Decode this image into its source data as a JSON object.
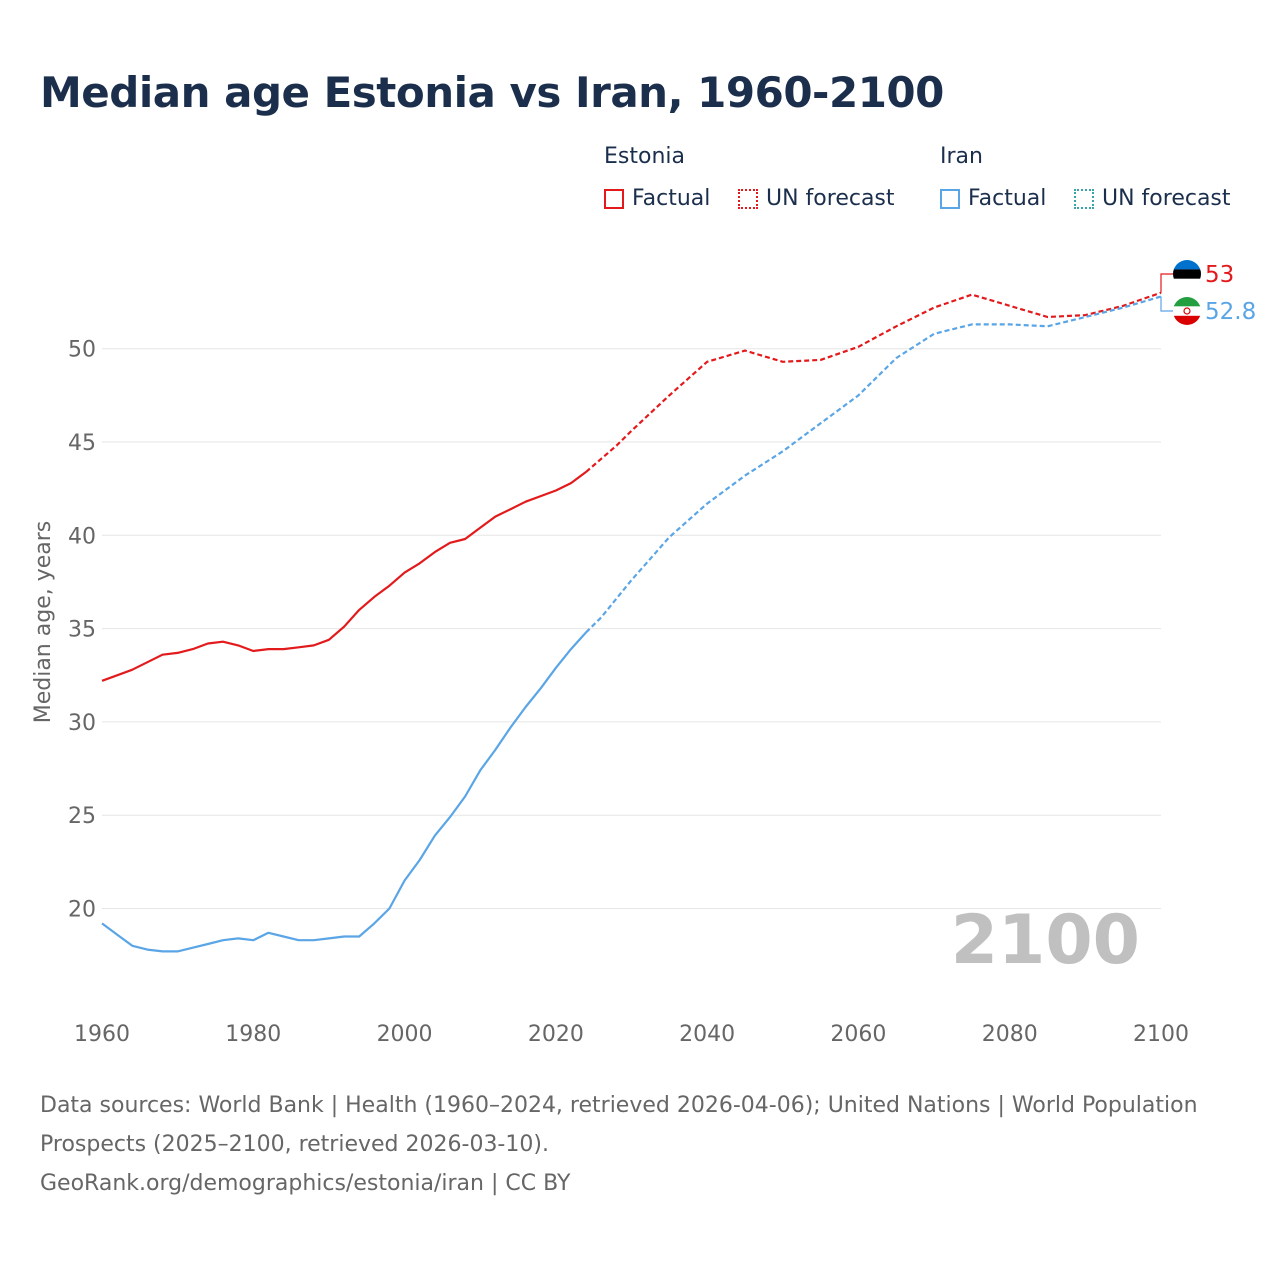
{
  "title": "Median age Estonia vs Iran, 1960-2100",
  "legend": {
    "groups": [
      {
        "name": "Estonia",
        "factual": "Factual",
        "forecast": "UN forecast",
        "color": "#e31a1c"
      },
      {
        "name": "Iran",
        "factual": "Factual",
        "forecast": "UN forecast",
        "color": "#5aa5e6"
      }
    ]
  },
  "year_watermark": "2100",
  "end_labels": {
    "estonia": "53",
    "iran": "52.8"
  },
  "footer": {
    "sources": "Data sources: World Bank | Health (1960–2024, retrieved 2026-04-06); United Nations | World Population Prospects (2025–2100, retrieved 2026-03-10).",
    "credit": "GeoRank.org/demographics/estonia/iran | CC BY"
  },
  "chart_data": {
    "type": "line",
    "title": "Median age Estonia vs Iran, 1960-2100",
    "xlabel": "",
    "ylabel": "Median age, years",
    "xlim": [
      1960,
      2100
    ],
    "ylim": [
      15,
      54
    ],
    "x_ticks": [
      1960,
      1980,
      2000,
      2020,
      2040,
      2060,
      2080,
      2100
    ],
    "y_ticks": [
      20,
      25,
      30,
      35,
      40,
      45,
      50
    ],
    "grid": true,
    "factual_end_year": 2024,
    "series": [
      {
        "name": "Estonia",
        "color": "#e31a1c",
        "x": [
          1960,
          1962,
          1964,
          1966,
          1968,
          1970,
          1972,
          1974,
          1976,
          1978,
          1980,
          1982,
          1984,
          1986,
          1988,
          1990,
          1992,
          1994,
          1996,
          1998,
          2000,
          2002,
          2004,
          2006,
          2008,
          2010,
          2012,
          2014,
          2016,
          2018,
          2020,
          2022,
          2024,
          2026,
          2028,
          2030,
          2035,
          2040,
          2045,
          2050,
          2055,
          2060,
          2065,
          2070,
          2075,
          2080,
          2085,
          2090,
          2095,
          2100
        ],
        "values": [
          32.2,
          32.5,
          32.8,
          33.2,
          33.6,
          33.7,
          33.9,
          34.2,
          34.3,
          34.1,
          33.8,
          33.9,
          33.9,
          34.0,
          34.1,
          34.4,
          35.1,
          36.0,
          36.7,
          37.3,
          38.0,
          38.5,
          39.1,
          39.6,
          39.8,
          40.4,
          41.0,
          41.4,
          41.8,
          42.1,
          42.4,
          42.8,
          43.4,
          44.1,
          44.8,
          45.6,
          47.5,
          49.3,
          49.9,
          49.3,
          49.4,
          50.1,
          51.2,
          52.2,
          52.9,
          52.3,
          51.7,
          51.8,
          52.3,
          53.0
        ]
      },
      {
        "name": "Iran",
        "color": "#5aa5e6",
        "x": [
          1960,
          1962,
          1964,
          1966,
          1968,
          1970,
          1972,
          1974,
          1976,
          1978,
          1980,
          1982,
          1984,
          1986,
          1988,
          1990,
          1992,
          1994,
          1996,
          1998,
          2000,
          2002,
          2004,
          2006,
          2008,
          2010,
          2012,
          2014,
          2016,
          2018,
          2020,
          2022,
          2024,
          2026,
          2028,
          2030,
          2035,
          2040,
          2045,
          2050,
          2055,
          2060,
          2065,
          2070,
          2075,
          2080,
          2085,
          2090,
          2095,
          2100
        ],
        "values": [
          19.2,
          18.6,
          18.0,
          17.8,
          17.7,
          17.7,
          17.9,
          18.1,
          18.3,
          18.4,
          18.3,
          18.7,
          18.5,
          18.3,
          18.3,
          18.4,
          18.5,
          18.5,
          19.2,
          20.0,
          21.5,
          22.6,
          23.9,
          24.9,
          26.0,
          27.4,
          28.5,
          29.7,
          30.8,
          31.8,
          32.9,
          33.9,
          34.8,
          35.6,
          36.6,
          37.6,
          39.9,
          41.7,
          43.2,
          44.5,
          46.0,
          47.5,
          49.5,
          50.8,
          51.3,
          51.3,
          51.2,
          51.7,
          52.2,
          52.8
        ]
      }
    ]
  }
}
